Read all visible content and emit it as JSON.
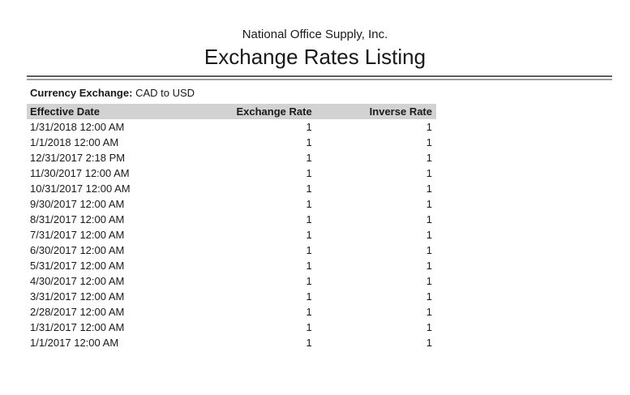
{
  "header": {
    "company": "National Office Supply, Inc.",
    "title": "Exchange Rates Listing"
  },
  "filter": {
    "label": "Currency Exchange:",
    "value": "CAD to USD"
  },
  "table": {
    "columns": [
      "Effective Date",
      "Exchange Rate",
      "Inverse Rate"
    ],
    "rows": [
      {
        "effective_date": "1/31/2018 12:00 AM",
        "exchange_rate": "1",
        "inverse_rate": "1"
      },
      {
        "effective_date": "1/1/2018 12:00 AM",
        "exchange_rate": "1",
        "inverse_rate": "1"
      },
      {
        "effective_date": "12/31/2017 2:18 PM",
        "exchange_rate": "1",
        "inverse_rate": "1"
      },
      {
        "effective_date": "11/30/2017 12:00 AM",
        "exchange_rate": "1",
        "inverse_rate": "1"
      },
      {
        "effective_date": "10/31/2017 12:00 AM",
        "exchange_rate": "1",
        "inverse_rate": "1"
      },
      {
        "effective_date": "9/30/2017 12:00 AM",
        "exchange_rate": "1",
        "inverse_rate": "1"
      },
      {
        "effective_date": "8/31/2017 12:00 AM",
        "exchange_rate": "1",
        "inverse_rate": "1"
      },
      {
        "effective_date": "7/31/2017 12:00 AM",
        "exchange_rate": "1",
        "inverse_rate": "1"
      },
      {
        "effective_date": "6/30/2017 12:00 AM",
        "exchange_rate": "1",
        "inverse_rate": "1"
      },
      {
        "effective_date": "5/31/2017 12:00 AM",
        "exchange_rate": "1",
        "inverse_rate": "1"
      },
      {
        "effective_date": "4/30/2017 12:00 AM",
        "exchange_rate": "1",
        "inverse_rate": "1"
      },
      {
        "effective_date": "3/31/2017 12:00 AM",
        "exchange_rate": "1",
        "inverse_rate": "1"
      },
      {
        "effective_date": "2/28/2017 12:00 AM",
        "exchange_rate": "1",
        "inverse_rate": "1"
      },
      {
        "effective_date": "1/31/2017 12:00 AM",
        "exchange_rate": "1",
        "inverse_rate": "1"
      },
      {
        "effective_date": "1/1/2017 12:00 AM",
        "exchange_rate": "1",
        "inverse_rate": "1"
      }
    ]
  },
  "colors": {
    "table_header_background": "#d2d2d2",
    "divider_top": "#5e5e5e",
    "divider_bottom": "#9c9c9c",
    "text": "#1a1a1a"
  }
}
